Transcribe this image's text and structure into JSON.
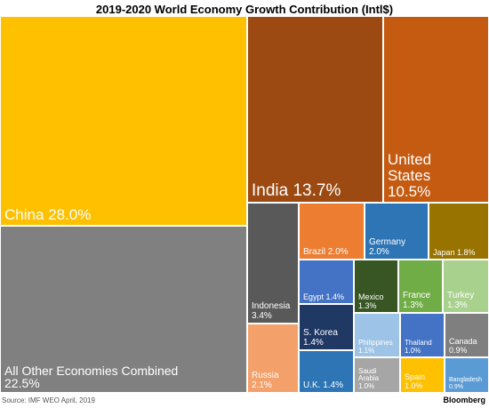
{
  "chart_data": {
    "type": "treemap",
    "title": "2019-2020 World Economy Growth Contribution (Intl$)",
    "unit": "%",
    "items": [
      {
        "name": "China",
        "label": "China 28.0%",
        "value": 28.0,
        "color": "#ffc000"
      },
      {
        "name": "All Other Economies Combined",
        "label": "All Other Economies Combined\n22.5%",
        "value": 22.5,
        "color": "#808080"
      },
      {
        "name": "India",
        "label": "India 13.7%",
        "value": 13.7,
        "color": "#9c4a12"
      },
      {
        "name": "United States",
        "label": "United\nStates\n10.5%",
        "value": 10.5,
        "color": "#c55a11"
      },
      {
        "name": "Indonesia",
        "label": "Indonesia\n3.4%",
        "value": 3.4,
        "color": "#595959"
      },
      {
        "name": "Russia",
        "label": "Russia\n2.1%",
        "value": 2.1,
        "color": "#f4a06a"
      },
      {
        "name": "Brazil",
        "label": "Brazil 2.0%",
        "value": 2.0,
        "color": "#ed7d31"
      },
      {
        "name": "Germany",
        "label": "Germany\n2.0%",
        "value": 2.0,
        "color": "#2e75b6"
      },
      {
        "name": "Japan",
        "label": "Japan 1.8%",
        "value": 1.8,
        "color": "#997300"
      },
      {
        "name": "Egypt",
        "label": "Egypt 1.4%",
        "value": 1.4,
        "color": "#4472c4"
      },
      {
        "name": "S. Korea",
        "label": "S. Korea\n1.4%",
        "value": 1.4,
        "color": "#1f3864"
      },
      {
        "name": "U.K.",
        "label": "U.K. 1.4%",
        "value": 1.4,
        "color": "#2e75b6"
      },
      {
        "name": "Mexico",
        "label": "Mexico\n1.3%",
        "value": 1.3,
        "color": "#375623"
      },
      {
        "name": "France",
        "label": "France\n1.3%",
        "value": 1.3,
        "color": "#70ad47"
      },
      {
        "name": "Turkey",
        "label": "Turkey\n1.3%",
        "value": 1.3,
        "color": "#a9d18e"
      },
      {
        "name": "Philippines",
        "label": "Philippines\n1.1%",
        "value": 1.1,
        "color": "#9dc3e6"
      },
      {
        "name": "Thailand",
        "label": "Thailand\n1.0%",
        "value": 1.0,
        "color": "#4472c4"
      },
      {
        "name": "Canada",
        "label": "Canada\n0.9%",
        "value": 0.9,
        "color": "#7f7f7f"
      },
      {
        "name": "Saudi Arabia",
        "label": "Saudi\nArabia\n1.0%",
        "value": 1.0,
        "color": "#a6a6a6"
      },
      {
        "name": "Spain",
        "label": "Spain\n1.0%",
        "value": 1.0,
        "color": "#ffc000"
      },
      {
        "name": "Bangladesh",
        "label": "Bangladesh\n0.9%",
        "value": 0.9,
        "color": "#5b9bd5"
      }
    ]
  },
  "footer": {
    "source": "Source: IMF WEO April, 2019",
    "brand": "Bloomberg"
  }
}
